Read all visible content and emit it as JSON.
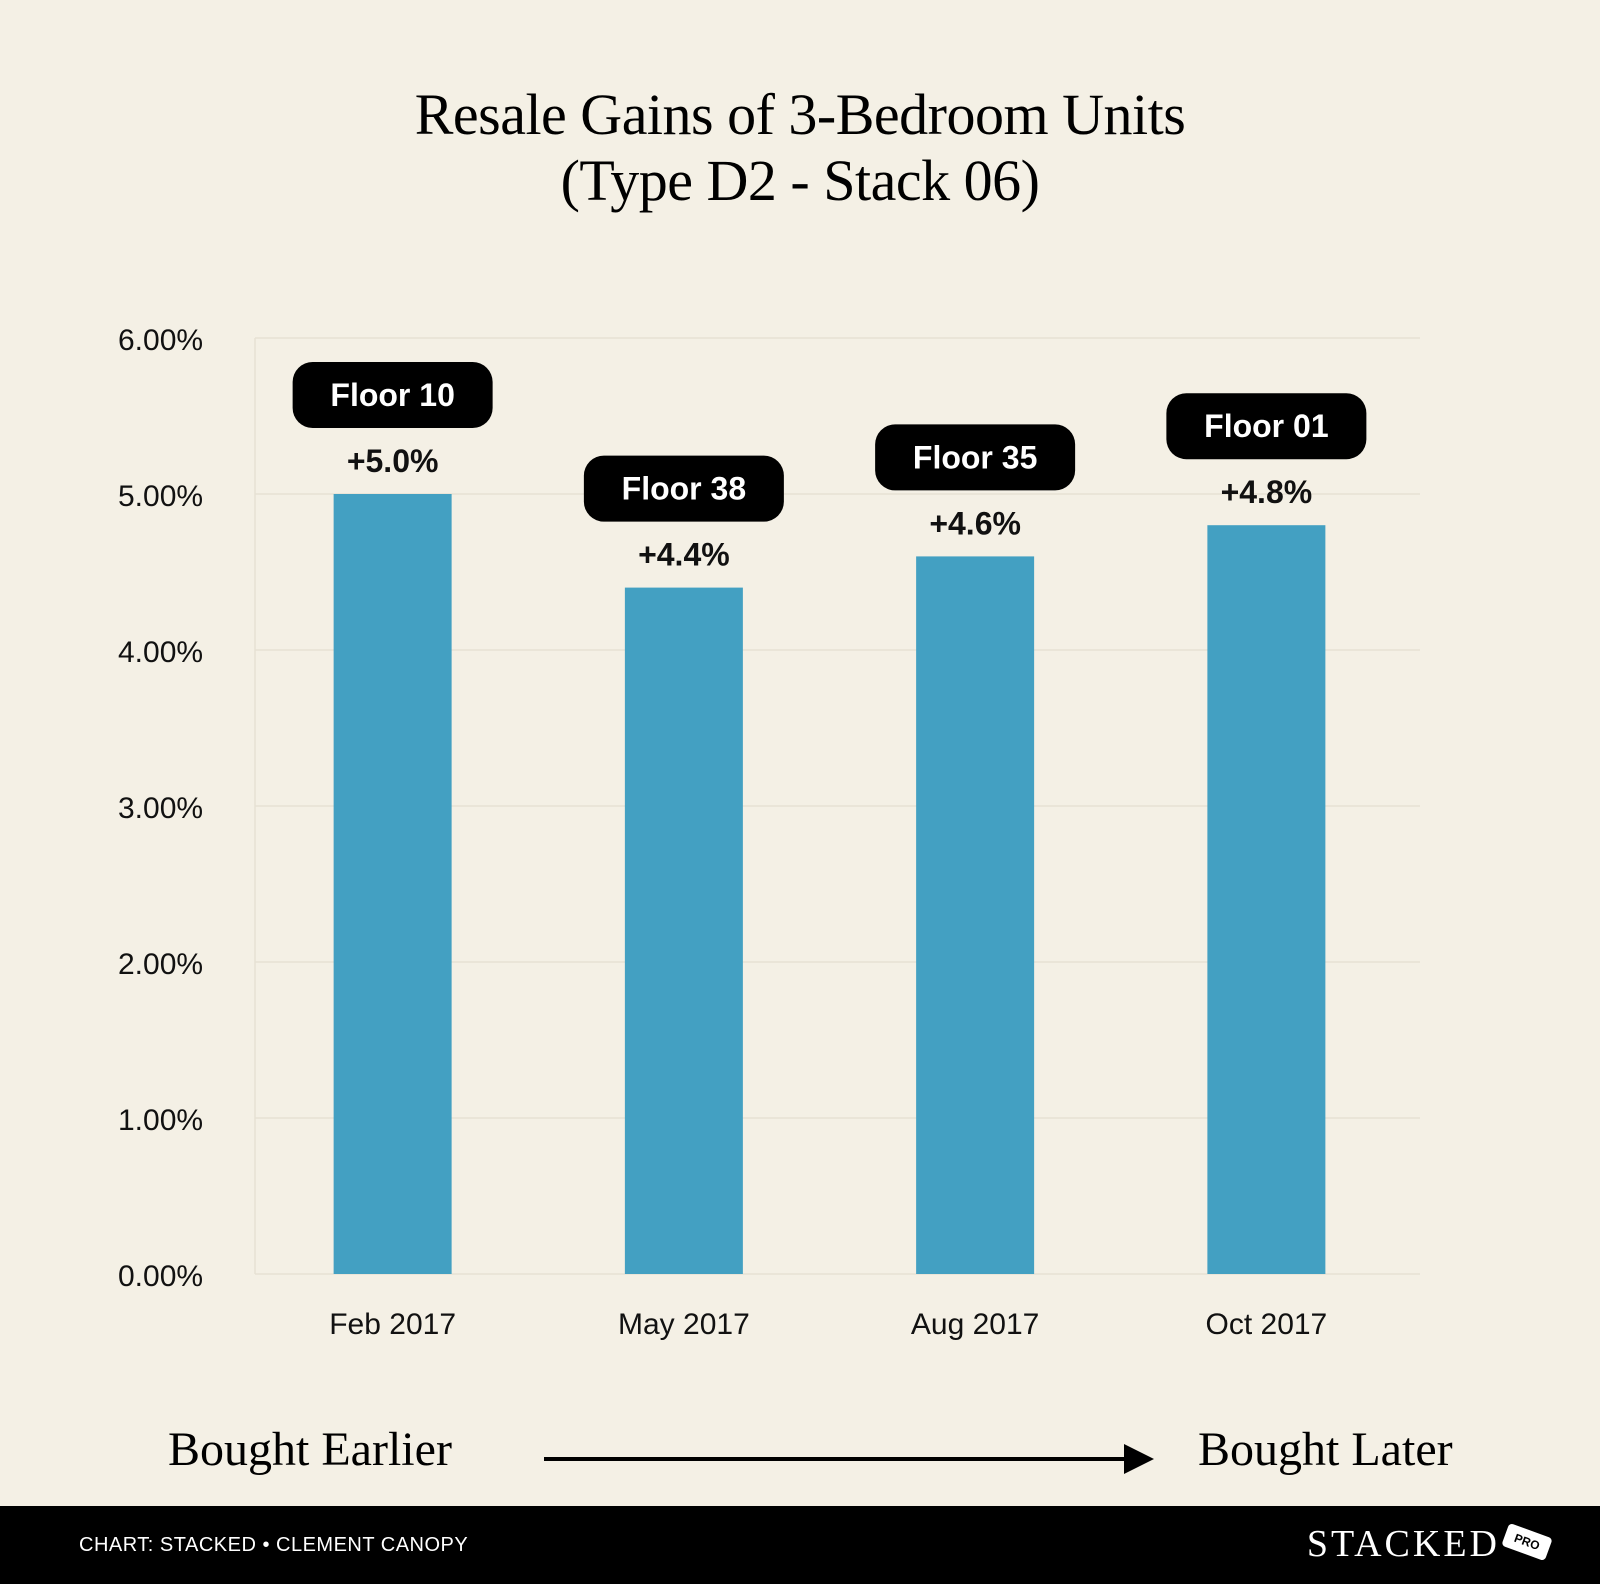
{
  "chart_data": {
    "type": "bar",
    "title_line1": "Resale Gains of 3-Bedroom Units",
    "title_line2": "(Type D2 - Stack 06)",
    "categories": [
      "Feb 2017",
      "May 2017",
      "Aug 2017",
      "Oct 2017"
    ],
    "values": [
      5.0,
      4.4,
      4.6,
      4.8
    ],
    "value_labels": [
      "+5.0%",
      "+4.4%",
      "+4.6%",
      "+4.8%"
    ],
    "floor_labels": [
      "Floor 10",
      "Floor 38",
      "Floor 35",
      "Floor 01"
    ],
    "ylim": [
      0,
      6
    ],
    "yticks": [
      "0.00%",
      "1.00%",
      "2.00%",
      "3.00%",
      "4.00%",
      "5.00%",
      "6.00%"
    ],
    "xlabel": "",
    "ylabel": "",
    "grid": true,
    "bar_color": "#43a0c2",
    "label_bg_color": "#000000"
  },
  "footer": {
    "left_label": "Bought Earlier",
    "right_label": "Bought Later",
    "credit": "CHART: STACKED • CLEMENT CANOPY",
    "brand": "STACKED",
    "badge": "PRO"
  }
}
